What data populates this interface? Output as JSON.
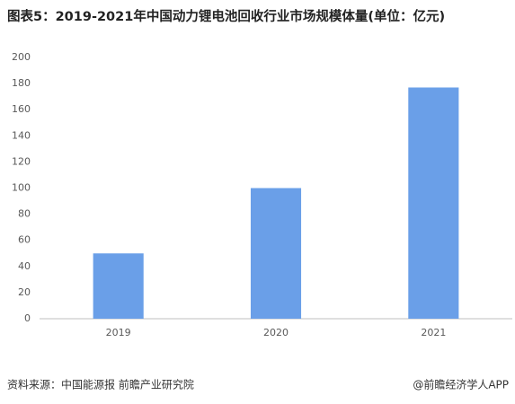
{
  "chart_data": {
    "type": "bar",
    "title": "图表5：2019-2021年中国动力锂电池回收行业市场规模体量(单位：亿元)",
    "categories": [
      "2019",
      "2020",
      "2021"
    ],
    "values": [
      50,
      100,
      177
    ],
    "color": "#6a9fe8",
    "ylim": [
      0,
      200
    ],
    "yticks": [
      0,
      20,
      40,
      60,
      80,
      100,
      120,
      140,
      160,
      180,
      200
    ],
    "grid": false,
    "source": "资料来源：中国能源报 前瞻产业研究院",
    "credit": "@前瞻经济学人APP"
  }
}
